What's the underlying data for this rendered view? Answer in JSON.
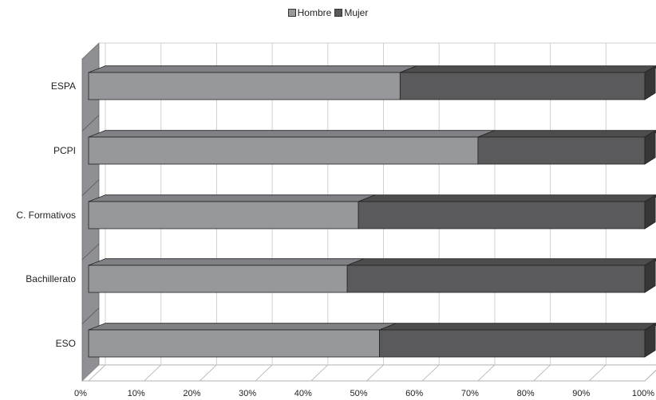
{
  "chart_data": {
    "type": "bar",
    "orientation": "horizontal",
    "stacked": true,
    "percent_stacked": true,
    "three_d": true,
    "categories": [
      "ESO",
      "Bachillerato",
      "C. Formativos",
      "PCPI",
      "ESPA"
    ],
    "series": [
      {
        "name": "Hombre",
        "values": [
          52.3,
          46.5,
          48.5,
          70,
          56
        ],
        "color": "#97989b"
      },
      {
        "name": "Mujer",
        "values": [
          47.7,
          53.5,
          51.5,
          30,
          44
        ],
        "color": "#5a5a5c"
      }
    ],
    "x_ticks": [
      "0%",
      "10%",
      "20%",
      "30%",
      "40%",
      "50%",
      "60%",
      "70%",
      "80%",
      "90%",
      "100%"
    ],
    "xlim": [
      0,
      100
    ],
    "grid": true,
    "legend_position": "top-center",
    "title": "",
    "xlabel": "",
    "ylabel": ""
  }
}
